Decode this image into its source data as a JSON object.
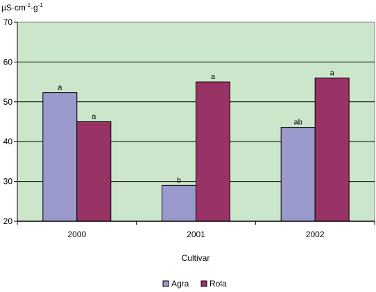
{
  "chart_data": {
    "type": "bar",
    "unit_label": {
      "base": "µS·cm",
      "exp1": "-1",
      "mid": "·g",
      "exp2": "-1"
    },
    "xlabel": "Cultivar",
    "categories": [
      "2000",
      "2001",
      "2002"
    ],
    "series": [
      {
        "name": "Agra",
        "color": "#9999cc",
        "values": [
          52.3,
          29,
          43.6
        ],
        "labels": [
          "a",
          "b",
          "ab"
        ]
      },
      {
        "name": "Rola",
        "color": "#993366",
        "values": [
          45,
          55,
          56
        ],
        "labels": [
          "a",
          "a",
          "a"
        ]
      }
    ],
    "ylim": [
      20,
      70
    ],
    "yticks": [
      20,
      30,
      40,
      50,
      60,
      70
    ],
    "grid": true,
    "plot_background": "#cce6cc",
    "legend_position": "bottom"
  }
}
